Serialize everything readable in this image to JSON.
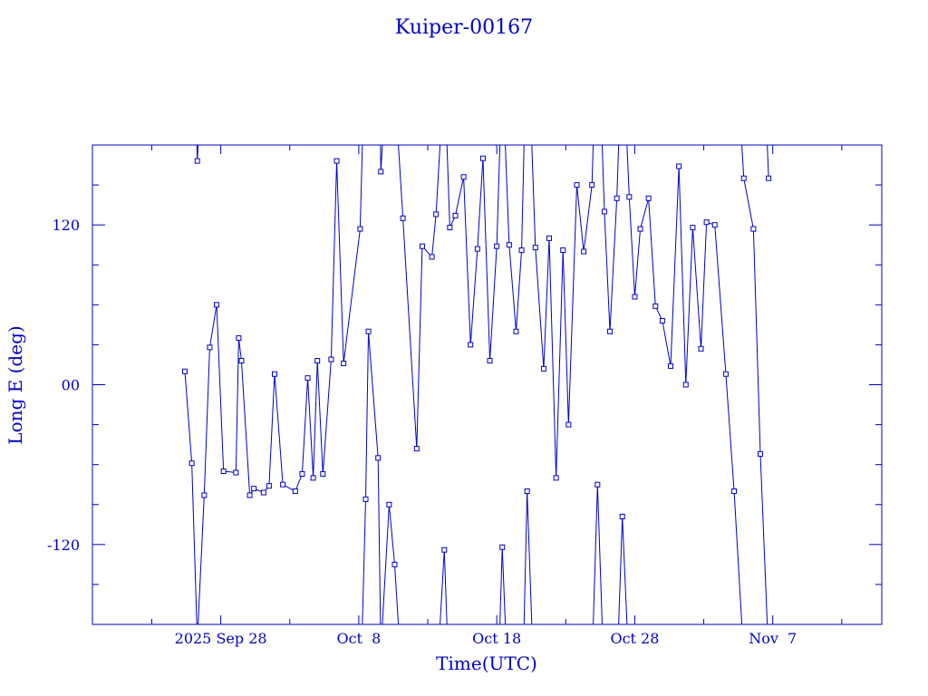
{
  "chart_data": {
    "type": "scatter",
    "title": "Kuiper-00167",
    "xlabel": "Time(UTC)",
    "ylabel": "Long E (deg)",
    "color": "#0000c8",
    "marker": "square",
    "connected": true,
    "x_unit": "days since 2025-09-28 00:00 UTC",
    "xlim": [
      -9.3,
      47.9
    ],
    "ylim": [
      -180,
      180
    ],
    "x_ticks": [
      {
        "x": 0,
        "label": "2025 Sep 28"
      },
      {
        "x": 10,
        "label": "Oct  8"
      },
      {
        "x": 20,
        "label": "Oct 18"
      },
      {
        "x": 30,
        "label": "Oct 28"
      },
      {
        "x": 40,
        "label": "Nov  7"
      }
    ],
    "y_ticks": [
      {
        "y": 120,
        "label": "120"
      },
      {
        "y": 0,
        "label": "00"
      },
      {
        "y": -120,
        "label": "-120"
      }
    ],
    "x": [
      -2.6,
      -2.1,
      -1.7,
      -1.2,
      -0.8,
      -0.3,
      0.2,
      1.1,
      1.3,
      1.5,
      2.1,
      2.4,
      3.1,
      3.5,
      3.9,
      4.5,
      5.4,
      5.9,
      6.3,
      6.7,
      7.0,
      7.4,
      8.0,
      8.4,
      8.9,
      10.1,
      10.5,
      10.7,
      11.4,
      11.6,
      12.2,
      12.6,
      13.2,
      14.2,
      14.6,
      15.3,
      15.6,
      16.2,
      16.6,
      17.0,
      17.6,
      18.1,
      18.6,
      19.0,
      19.5,
      20.0,
      20.4,
      20.9,
      21.4,
      21.8,
      22.2,
      22.8,
      23.4,
      23.8,
      24.3,
      24.8,
      25.2,
      25.8,
      26.3,
      26.9,
      27.3,
      27.8,
      28.2,
      28.7,
      29.1,
      29.6,
      30.0,
      30.4,
      31.0,
      31.5,
      32.0,
      32.6,
      33.2,
      33.7,
      34.2,
      34.8,
      35.2,
      35.8,
      36.6,
      37.2,
      37.9,
      38.6,
      39.1,
      39.7
    ],
    "y": [
      10,
      -59,
      168,
      -83,
      28,
      60,
      -65,
      -66,
      35,
      18,
      -83,
      -78,
      -81,
      -76,
      8,
      -75,
      -80,
      -67,
      5,
      -70,
      18,
      -67,
      19,
      168,
      16,
      117,
      -86,
      40,
      -55,
      160,
      -90,
      -135,
      125,
      -48,
      104,
      96,
      128,
      -124,
      118,
      127,
      156,
      30,
      102,
      170,
      18,
      104,
      -122,
      105,
      40,
      101,
      -80,
      103,
      12,
      110,
      -70,
      101,
      -30,
      150,
      100,
      150,
      -75,
      130,
      40,
      140,
      -99,
      141,
      66,
      117,
      140,
      59,
      48,
      14,
      164,
      0,
      118,
      27,
      122,
      120,
      8,
      -80,
      155,
      117,
      -52,
      155
    ]
  }
}
